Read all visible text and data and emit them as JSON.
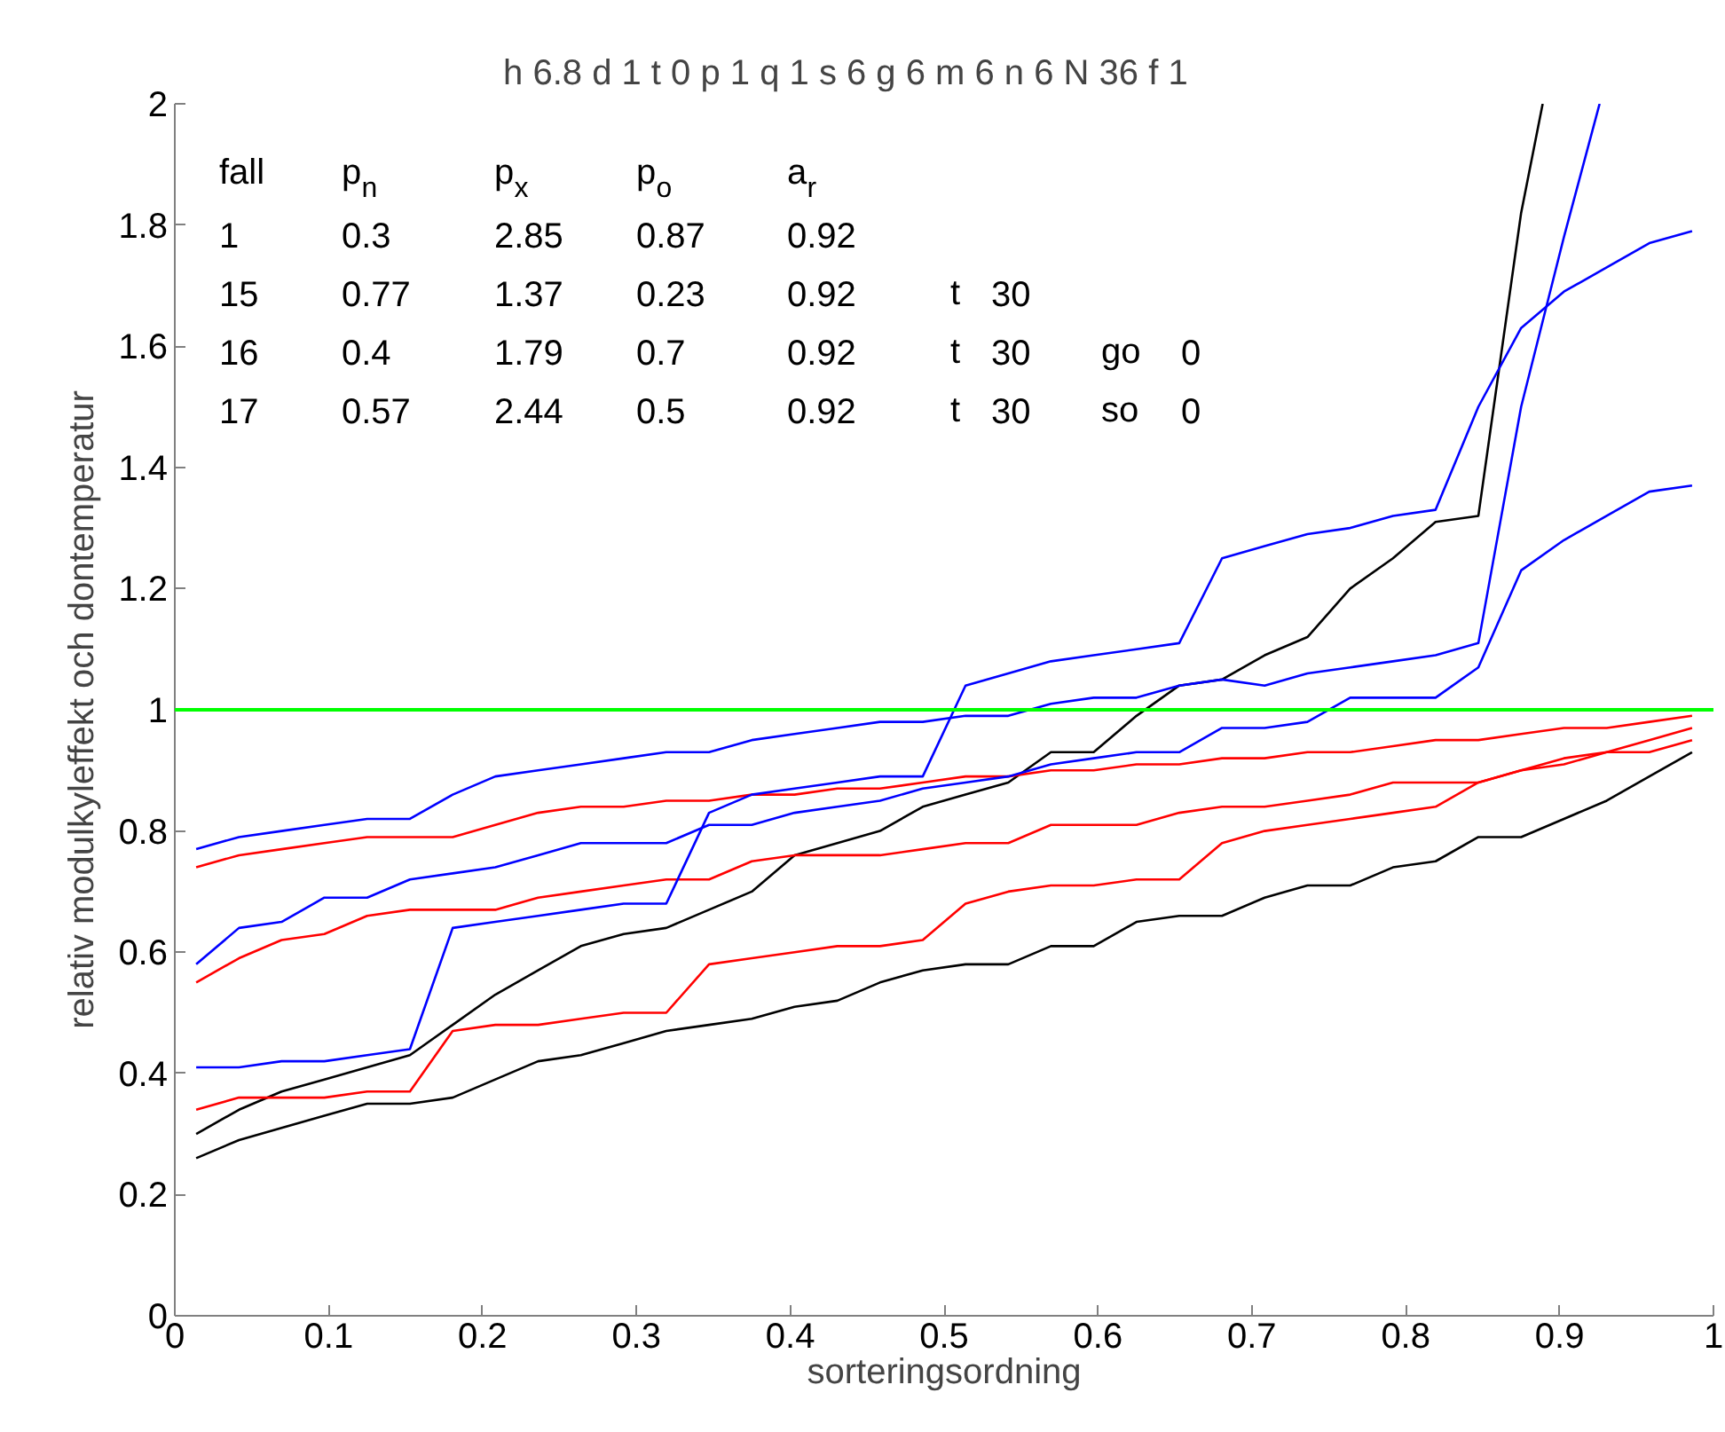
{
  "chart_data": {
    "type": "line",
    "title": "h 6.8   d 1   t 0   p 1   q 1   s 6   g 6   m 6   n 6   N 36   f 1",
    "xlabel": "sorteringsordning",
    "ylabel": "relativ modulkyleffekt och dontemperatur",
    "annotations": [
      "fall   p$_{n}$   p$_{x}$   p$_{o}$   a$_{r}$",
      "1   0.3   2.85   0.87   0.92",
      "15   0.77   1.37   0.23   0.92   t  30",
      "16   0.4   1.79   0.7   0.92   t  30   go  0",
      "17   0.57   2.44   0.5   0.92   t  30   so  0"
    ],
    "x": [
      0.0139,
      0.0417,
      0.0694,
      0.0972,
      0.125,
      0.1528,
      0.1806,
      0.2083,
      0.2361,
      0.2639,
      0.2917,
      0.3194,
      0.3472,
      0.375,
      0.4028,
      0.4306,
      0.4583,
      0.4861,
      0.5139,
      0.5417,
      0.5694,
      0.5972,
      0.625,
      0.6528,
      0.6806,
      0.7083,
      0.7361,
      0.7639,
      0.7917,
      0.8194,
      0.8472,
      0.875,
      0.9028,
      0.9306,
      0.9583,
      0.9861
    ],
    "series": [
      {
        "color": "#000000",
        "values": [
          0.26,
          0.29,
          0.31,
          0.33,
          0.35,
          0.35,
          0.36,
          0.39,
          0.42,
          0.43,
          0.45,
          0.47,
          0.48,
          0.49,
          0.51,
          0.52,
          0.55,
          0.57,
          0.58,
          0.58,
          0.61,
          0.61,
          0.65,
          0.66,
          0.66,
          0.69,
          0.71,
          0.71,
          0.74,
          0.75,
          0.79,
          0.79,
          0.82,
          0.85,
          0.89,
          0.93
        ]
      },
      {
        "color": "#000000",
        "x": [
          0.0139,
          0.0417,
          0.0694,
          0.0972,
          0.125,
          0.1528,
          0.1806,
          0.2083,
          0.2361,
          0.2639,
          0.2917,
          0.3194,
          0.3472,
          0.375,
          0.4028,
          0.4306,
          0.4583,
          0.4861,
          0.5139,
          0.5417,
          0.5694,
          0.5972,
          0.625,
          0.6528,
          0.6806,
          0.7083,
          0.7361,
          0.7639,
          0.7917,
          0.8194,
          0.8472,
          0.875,
          0.889
        ],
        "values": [
          0.3,
          0.34,
          0.37,
          0.39,
          0.41,
          0.43,
          0.48,
          0.53,
          0.57,
          0.61,
          0.63,
          0.64,
          0.67,
          0.7,
          0.76,
          0.78,
          0.8,
          0.84,
          0.86,
          0.88,
          0.93,
          0.93,
          0.99,
          1.04,
          1.05,
          1.09,
          1.12,
          1.2,
          1.25,
          1.31,
          1.32,
          1.82,
          2.0
        ]
      },
      {
        "color": "#ff0000",
        "values": [
          0.34,
          0.36,
          0.36,
          0.36,
          0.37,
          0.37,
          0.47,
          0.48,
          0.48,
          0.49,
          0.5,
          0.5,
          0.58,
          0.59,
          0.6,
          0.61,
          0.61,
          0.62,
          0.68,
          0.7,
          0.71,
          0.71,
          0.72,
          0.72,
          0.78,
          0.8,
          0.81,
          0.82,
          0.83,
          0.84,
          0.88,
          0.9,
          0.91,
          0.93,
          0.95,
          0.97
        ]
      },
      {
        "color": "#ff0000",
        "values": [
          0.55,
          0.59,
          0.62,
          0.63,
          0.66,
          0.67,
          0.67,
          0.67,
          0.69,
          0.7,
          0.71,
          0.72,
          0.72,
          0.75,
          0.76,
          0.76,
          0.76,
          0.77,
          0.78,
          0.78,
          0.81,
          0.81,
          0.81,
          0.83,
          0.84,
          0.84,
          0.85,
          0.86,
          0.88,
          0.88,
          0.88,
          0.9,
          0.92,
          0.93,
          0.93,
          0.95
        ]
      },
      {
        "color": "#ff0000",
        "values": [
          0.74,
          0.76,
          0.77,
          0.78,
          0.79,
          0.79,
          0.79,
          0.81,
          0.83,
          0.84,
          0.84,
          0.85,
          0.85,
          0.86,
          0.86,
          0.87,
          0.87,
          0.88,
          0.89,
          0.89,
          0.9,
          0.9,
          0.91,
          0.91,
          0.92,
          0.92,
          0.93,
          0.93,
          0.94,
          0.95,
          0.95,
          0.96,
          0.97,
          0.97,
          0.98,
          0.99
        ]
      },
      {
        "color": "#0000ff",
        "values": [
          0.41,
          0.41,
          0.42,
          0.42,
          0.43,
          0.44,
          0.64,
          0.65,
          0.66,
          0.67,
          0.68,
          0.68,
          0.83,
          0.86,
          0.87,
          0.88,
          0.89,
          0.89,
          1.04,
          1.06,
          1.08,
          1.09,
          1.1,
          1.11,
          1.25,
          1.27,
          1.29,
          1.3,
          1.32,
          1.33,
          1.5,
          1.63,
          1.69,
          1.73,
          1.77,
          1.79
        ]
      },
      {
        "color": "#0000ff",
        "values": [
          0.58,
          0.64,
          0.65,
          0.69,
          0.69,
          0.72,
          0.73,
          0.74,
          0.76,
          0.78,
          0.78,
          0.78,
          0.81,
          0.81,
          0.83,
          0.84,
          0.85,
          0.87,
          0.88,
          0.89,
          0.91,
          0.92,
          0.93,
          0.93,
          0.97,
          0.97,
          0.98,
          1.02,
          1.02,
          1.02,
          1.07,
          1.23,
          1.28,
          1.32,
          1.36,
          1.37
        ]
      },
      {
        "color": "#0000ff",
        "x": [
          0.0139,
          0.0417,
          0.0694,
          0.0972,
          0.125,
          0.1528,
          0.1806,
          0.2083,
          0.2361,
          0.2639,
          0.2917,
          0.3194,
          0.3472,
          0.375,
          0.4028,
          0.4306,
          0.4583,
          0.4861,
          0.5139,
          0.5417,
          0.5694,
          0.5972,
          0.625,
          0.6528,
          0.6806,
          0.7083,
          0.7361,
          0.7639,
          0.7917,
          0.8194,
          0.8472,
          0.875,
          0.9028,
          0.926
        ],
        "values": [
          0.77,
          0.79,
          0.8,
          0.81,
          0.82,
          0.82,
          0.86,
          0.89,
          0.9,
          0.91,
          0.92,
          0.93,
          0.93,
          0.95,
          0.96,
          0.97,
          0.98,
          0.98,
          0.99,
          0.99,
          1.01,
          1.02,
          1.02,
          1.04,
          1.05,
          1.04,
          1.06,
          1.07,
          1.08,
          1.09,
          1.11,
          1.5,
          1.78,
          2.0
        ]
      }
    ],
    "ref_lines": [
      {
        "axis": "y",
        "value": 1,
        "color": "#00ff00"
      }
    ],
    "xlim": [
      0,
      1
    ],
    "ylim": [
      0,
      2
    ],
    "xticks": [
      0,
      0.1,
      0.2,
      0.3,
      0.4,
      0.5,
      0.6,
      0.7,
      0.8,
      0.9,
      1
    ],
    "yticks": [
      0,
      0.2,
      0.4,
      0.6,
      0.8,
      1,
      1.2,
      1.4,
      1.6,
      1.8,
      2
    ]
  }
}
